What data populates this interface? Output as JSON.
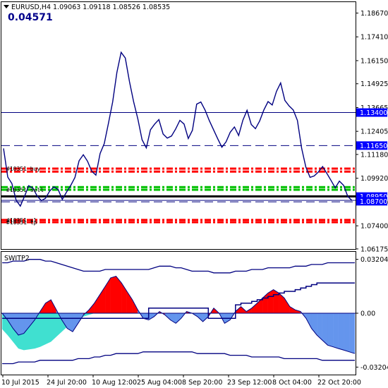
{
  "header": {
    "symbol": "EURUSD,H4",
    "ohlc": "1.09063 1.09118 1.08526 1.08535",
    "value": "0.04571"
  },
  "subwindow": {
    "title": "SWITP2"
  },
  "object_labels": [
    "#10351 buy",
    "#10351 sell",
    "#10351 sl",
    "#10351 tp"
  ],
  "colors": {
    "price": "#000080",
    "red_level": "#ff0000",
    "green_level": "#00c000",
    "hline": "#000080",
    "red_fill": "#ff0000",
    "blue_fill": "#6495ed",
    "teal_fill": "#40e0d0",
    "tag_bg": "#0000ff"
  },
  "chart_data": [
    {
      "type": "line",
      "title": "EURUSD,H4",
      "x_tick_labels": [
        "10 Jul 2015",
        "24 Jul 20:00",
        "10 Aug 12:00",
        "25 Aug 04:00",
        "8 Sep 20:00",
        "23 Sep 12:00",
        "8 Oct 04:00",
        "22 Oct 20:00"
      ],
      "y_tick_labels": [
        "1.18670",
        "1.17410",
        "1.16150",
        "1.14925",
        "1.13665",
        "1.12405",
        "1.11180",
        "1.09920",
        "1.08660",
        "1.07400",
        "1.06175"
      ],
      "ylim": [
        1.0617,
        1.1925
      ],
      "price_tags": [
        {
          "label": "1.13400",
          "value": 1.134
        },
        {
          "label": "1.11650",
          "value": 1.1165
        },
        {
          "label": "1.08950",
          "value": 1.0895
        },
        {
          "label": "1.08700",
          "value": 1.087
        }
      ],
      "levels": {
        "red_dashdot": [
          1.1043,
          1.1027,
          1.0771,
          1.0759
        ],
        "green_dashdot": [
          1.0945,
          1.0931
        ],
        "black_solid": [
          1.0896
        ],
        "navy_solid": [
          1.134,
          1.0875
        ],
        "navy_dashed": [
          1.1165,
          1.0867
        ]
      },
      "series": [
        {
          "values": [
            1.115,
            1.1,
            1.096,
            1.088,
            1.084,
            1.09,
            1.095,
            1.094,
            1.09,
            1.087,
            1.089,
            1.092,
            1.095,
            1.093,
            1.088,
            1.092,
            1.095,
            1.1,
            1.108,
            1.112,
            1.108,
            1.103,
            1.101,
            1.112,
            1.118,
            1.128,
            1.14,
            1.155,
            1.166,
            1.163,
            1.15,
            1.14,
            1.13,
            1.12,
            1.115,
            1.125,
            1.128,
            1.13,
            1.123,
            1.12,
            1.122,
            1.125,
            1.13,
            1.128,
            1.12,
            1.125,
            1.138,
            1.14,
            1.135,
            1.13,
            1.125,
            1.12,
            1.116,
            1.118,
            1.124,
            1.126,
            1.122,
            1.13,
            1.135,
            1.128,
            1.125,
            1.13,
            1.135,
            1.14,
            1.138,
            1.145,
            1.15,
            1.14,
            1.138,
            1.135,
            1.13,
            1.115,
            1.105,
            1.1,
            1.1,
            1.103,
            1.105,
            1.102,
            1.098,
            1.094,
            1.098,
            1.095,
            1.09,
            1.087
          ]
        }
      ]
    },
    {
      "type": "area",
      "title": "SWITP2",
      "y_tick_labels": [
        "0.03204",
        "0.00",
        "-0.03204"
      ],
      "ylim": [
        -0.0365,
        0.0365
      ],
      "series": [
        {
          "name": "oscillator",
          "values": [
            0.0,
            -0.004,
            -0.009,
            -0.013,
            -0.012,
            -0.008,
            -0.004,
            0.001,
            0.006,
            0.008,
            0.002,
            -0.004,
            -0.009,
            -0.011,
            -0.006,
            -0.001,
            0.002,
            0.006,
            0.011,
            0.016,
            0.021,
            0.022,
            0.018,
            0.013,
            0.008,
            0.002,
            -0.003,
            -0.004,
            -0.002,
            0.001,
            -0.001,
            -0.004,
            -0.006,
            -0.003,
            0.001,
            0.0,
            -0.002,
            -0.005,
            -0.002,
            0.003,
            0.0,
            -0.006,
            -0.004,
            0.001,
            0.004,
            0.001,
            0.003,
            0.006,
            0.009,
            0.012,
            0.014,
            0.012,
            0.009,
            0.004,
            0.002,
            0.001,
            -0.003,
            -0.009,
            -0.013,
            -0.016,
            -0.019,
            -0.02,
            -0.021,
            -0.022,
            -0.023,
            -0.024
          ]
        },
        {
          "name": "band_low",
          "values": [
            -0.0095,
            -0.013,
            -0.017,
            -0.021,
            -0.022,
            -0.0215,
            -0.021,
            -0.02,
            -0.0185,
            -0.017,
            -0.014,
            -0.011,
            -0.008,
            -0.006,
            -0.004,
            -0.002,
            -0.001,
            0.0,
            0.0,
            0.0,
            0.0,
            0.0,
            0.0,
            0.0,
            0.0,
            0.0,
            0.0,
            0.0,
            0.0,
            0.0,
            0.0,
            0.0,
            0.0,
            0.0,
            0.0,
            0.0,
            0.0,
            0.0,
            0.0,
            0.0,
            0.0,
            0.0,
            0.0,
            0.0,
            0.0,
            0.0,
            0.0,
            0.0,
            0.0,
            0.0,
            0.0,
            0.0,
            0.0,
            0.0,
            0.0,
            0.0,
            0.0,
            0.0,
            0.0,
            0.0,
            0.0,
            0.0,
            0.0,
            0.0,
            0.0,
            0.0
          ]
        },
        {
          "name": "envelope_upper",
          "values": [
            0.03,
            0.03,
            0.031,
            0.031,
            0.031,
            0.032,
            0.032,
            0.032,
            0.031,
            0.031,
            0.03,
            0.029,
            0.028,
            0.027,
            0.026,
            0.025,
            0.025,
            0.025,
            0.025,
            0.026,
            0.026,
            0.026,
            0.026,
            0.026,
            0.026,
            0.026,
            0.026,
            0.026,
            0.027,
            0.028,
            0.028,
            0.028,
            0.027,
            0.027,
            0.026,
            0.025,
            0.025,
            0.025,
            0.025,
            0.024,
            0.024,
            0.024,
            0.024,
            0.025,
            0.025,
            0.025,
            0.026,
            0.026,
            0.026,
            0.027,
            0.027,
            0.027,
            0.027,
            0.027,
            0.028,
            0.028,
            0.028,
            0.029,
            0.029,
            0.029,
            0.03,
            0.03,
            0.03,
            0.03,
            0.03,
            0.03
          ]
        },
        {
          "name": "envelope_lower",
          "values": [
            -0.03,
            -0.03,
            -0.03,
            -0.029,
            -0.029,
            -0.029,
            -0.029,
            -0.028,
            -0.028,
            -0.028,
            -0.028,
            -0.028,
            -0.028,
            -0.028,
            -0.027,
            -0.027,
            -0.027,
            -0.026,
            -0.026,
            -0.025,
            -0.025,
            -0.024,
            -0.024,
            -0.024,
            -0.024,
            -0.024,
            -0.023,
            -0.023,
            -0.023,
            -0.023,
            -0.023,
            -0.023,
            -0.023,
            -0.023,
            -0.023,
            -0.023,
            -0.024,
            -0.024,
            -0.024,
            -0.024,
            -0.024,
            -0.024,
            -0.025,
            -0.025,
            -0.025,
            -0.025,
            -0.026,
            -0.026,
            -0.026,
            -0.026,
            -0.026,
            -0.026,
            -0.027,
            -0.027,
            -0.027,
            -0.027,
            -0.027,
            -0.027,
            -0.027,
            -0.028,
            -0.028,
            -0.028,
            -0.028,
            -0.028,
            -0.028,
            -0.028
          ]
        },
        {
          "name": "step",
          "values": [
            -0.003,
            -0.003,
            -0.003,
            -0.003,
            -0.003,
            -0.003,
            -0.003,
            -0.003,
            -0.003,
            -0.003,
            -0.003,
            -0.003,
            -0.003,
            -0.003,
            -0.003,
            -0.003,
            -0.003,
            -0.003,
            -0.003,
            -0.003,
            -0.003,
            -0.003,
            -0.003,
            -0.003,
            -0.003,
            -0.003,
            -0.003,
            0.003,
            0.003,
            0.003,
            0.003,
            0.003,
            0.003,
            0.003,
            0.003,
            0.003,
            0.003,
            0.003,
            -0.003,
            -0.003,
            -0.003,
            -0.003,
            -0.003,
            0.005,
            0.006,
            0.006,
            0.007,
            0.008,
            0.009,
            0.01,
            0.011,
            0.012,
            0.013,
            0.013,
            0.014,
            0.015,
            0.016,
            0.017,
            0.018,
            0.018,
            0.018,
            0.018,
            0.018,
            0.018,
            0.018,
            0.018
          ]
        }
      ]
    }
  ]
}
